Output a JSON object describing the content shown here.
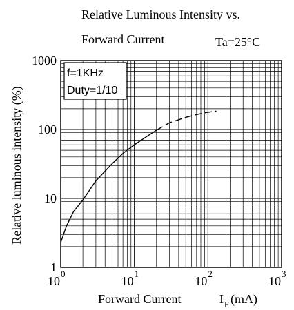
{
  "chart_data": {
    "type": "line",
    "title_line1": "Relative Luminous Intensity   vs.",
    "title_line2": "Forward Current",
    "condition": "Ta=25°C",
    "annotation": [
      "f=1KHz",
      "Duty=1/10"
    ],
    "xlabel": "Forward Current",
    "xlabel_symbol": "I",
    "xlabel_subscript": "F",
    "xlabel_unit": "(mA)",
    "ylabel": "Relative luminous intensity (%)",
    "x_scale": "log",
    "y_scale": "log",
    "xlim": [
      1,
      1000
    ],
    "ylim": [
      1,
      1000
    ],
    "grid": true,
    "x_ticks": [
      {
        "base": "10",
        "exp": "0",
        "value": 1
      },
      {
        "base": "10",
        "exp": "1",
        "value": 10
      },
      {
        "base": "10",
        "exp": "2",
        "value": 100
      },
      {
        "base": "10",
        "exp": "3",
        "value": 1000
      }
    ],
    "y_ticks": [
      {
        "label": "1",
        "value": 1
      },
      {
        "label": "10",
        "value": 10
      },
      {
        "label": "100",
        "value": 100
      },
      {
        "label": "1000",
        "value": 1000
      }
    ],
    "series": [
      {
        "style": "solid",
        "x": [
          1,
          1.2,
          1.5,
          2,
          3,
          5,
          7,
          10,
          15,
          20
        ],
        "y": [
          2.3,
          4,
          6.5,
          9.5,
          18,
          32,
          45,
          60,
          80,
          98
        ]
      },
      {
        "style": "dashed",
        "x": [
          20,
          30,
          50,
          70,
          100,
          130
        ],
        "y": [
          98,
          125,
          150,
          165,
          178,
          185
        ]
      }
    ]
  }
}
